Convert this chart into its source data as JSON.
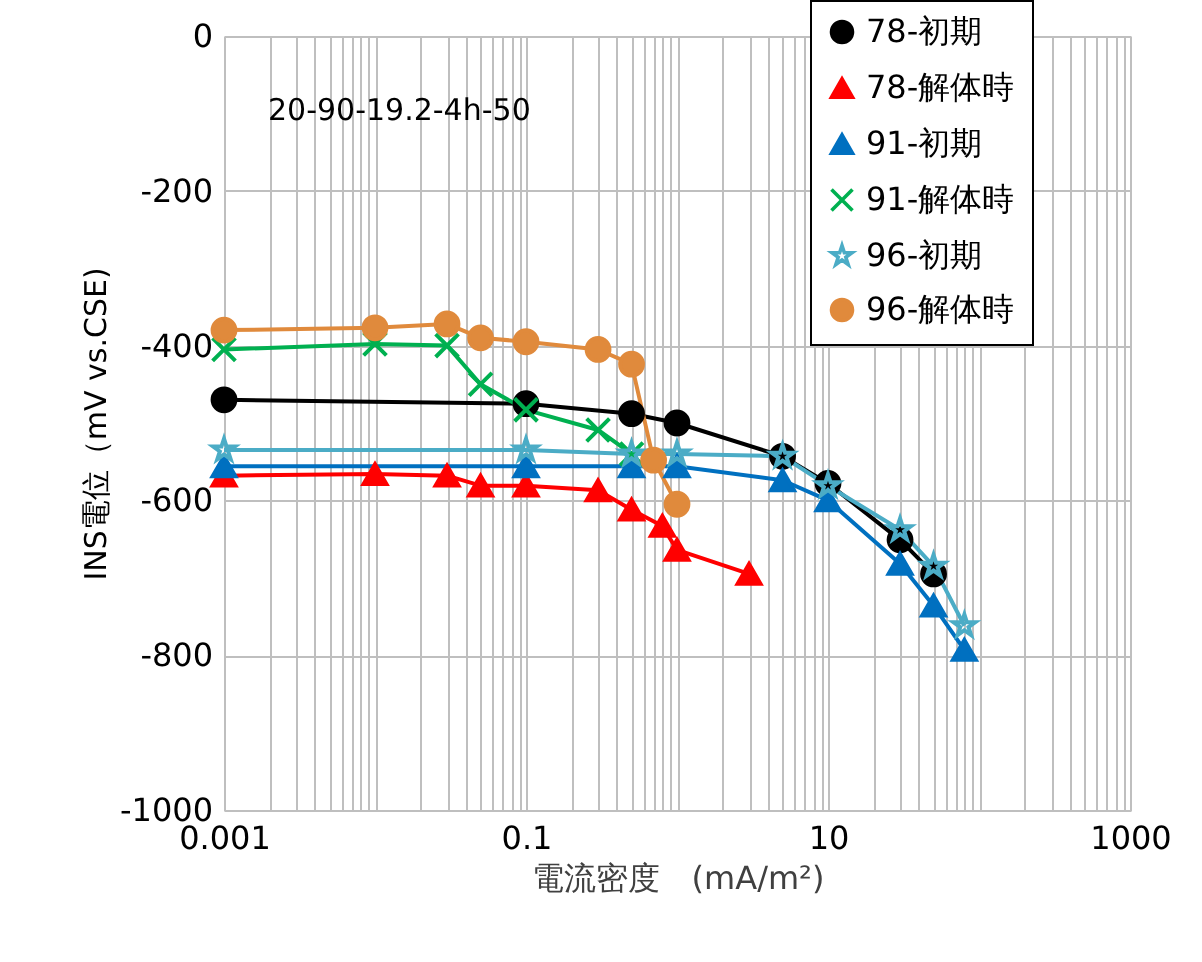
{
  "chart_data": {
    "type": "line",
    "xlabel": "電流密度　(mA/m²)",
    "ylabel": "INS電位（mV vs.CSE)",
    "annotations": [
      "20-90-19.2-4h-50"
    ],
    "log": "x",
    "grid": true,
    "legend": "top right",
    "line_style": "solid",
    "xlim": [
      0.001,
      1000
    ],
    "xticks": [
      0.001,
      {
        "value": 0.002,
        "label": null
      },
      {
        "value": 0.003,
        "label": null
      },
      {
        "value": 0.004,
        "label": null
      },
      {
        "value": 0.005,
        "label": null
      },
      {
        "value": 0.006,
        "label": null
      },
      {
        "value": 0.007,
        "label": null
      },
      {
        "value": 0.008,
        "label": null
      },
      {
        "value": 0.009,
        "label": null
      },
      {
        "value": 0.01,
        "label": null
      },
      {
        "value": 0.02,
        "label": null
      },
      {
        "value": 0.03,
        "label": null
      },
      {
        "value": 0.04,
        "label": null
      },
      {
        "value": 0.05,
        "label": null
      },
      {
        "value": 0.06,
        "label": null
      },
      {
        "value": 0.07,
        "label": null
      },
      {
        "value": 0.08,
        "label": null
      },
      {
        "value": 0.09,
        "label": null
      },
      0.1,
      {
        "value": 0.2,
        "label": null
      },
      {
        "value": 0.3,
        "label": null
      },
      {
        "value": 0.4,
        "label": null
      },
      {
        "value": 0.5,
        "label": null
      },
      {
        "value": 0.6,
        "label": null
      },
      {
        "value": 0.7,
        "label": null
      },
      {
        "value": 0.8,
        "label": null
      },
      {
        "value": 0.9,
        "label": null
      },
      {
        "value": 1,
        "label": null
      },
      {
        "value": 2,
        "label": null
      },
      {
        "value": 3,
        "label": null
      },
      {
        "value": 4,
        "label": null
      },
      {
        "value": 5,
        "label": null
      },
      {
        "value": 6,
        "label": null
      },
      {
        "value": 7,
        "label": null
      },
      {
        "value": 8,
        "label": null
      },
      {
        "value": 9,
        "label": null
      },
      10,
      {
        "value": 20,
        "label": null
      },
      {
        "value": 30,
        "label": null
      },
      {
        "value": 40,
        "label": null
      },
      {
        "value": 50,
        "label": null
      },
      {
        "value": 60,
        "label": null
      },
      {
        "value": 70,
        "label": null
      },
      {
        "value": 80,
        "label": null
      },
      {
        "value": 90,
        "label": null
      },
      {
        "value": 100,
        "label": null
      },
      {
        "value": 200,
        "label": null
      },
      {
        "value": 300,
        "label": null
      },
      {
        "value": 400,
        "label": null
      },
      {
        "value": 500,
        "label": null
      },
      {
        "value": 600,
        "label": null
      },
      {
        "value": 700,
        "label": null
      },
      {
        "value": 800,
        "label": null
      },
      {
        "value": 900,
        "label": null
      },
      1000
    ],
    "ylim": [
      -1000,
      0
    ],
    "yticks": [
      -1000,
      -800,
      -600,
      -400,
      -200,
      0
    ],
    "series": [
      {
        "name": "78-初期",
        "color": "#000000",
        "marker": "circle",
        "x": [
          0.001,
          0.1,
          0.5,
          1,
          5,
          10,
          30,
          50
        ],
        "values": [
          -470,
          -475,
          -488,
          -500,
          -543,
          -578,
          -651,
          -695
        ]
      },
      {
        "name": "78-解体時",
        "color": "#ff0000",
        "marker": "triangle",
        "x": [
          0.001,
          0.01,
          0.03,
          0.05,
          0.1,
          0.3,
          0.5,
          0.8,
          1,
          3
        ],
        "values": [
          -568,
          -566,
          -568,
          -581,
          -581,
          -587,
          -612,
          -633,
          -664,
          -695
        ]
      },
      {
        "name": "91-初期",
        "color": "#0070c0",
        "marker": "triangle",
        "x": [
          0.001,
          0.1,
          0.5,
          1,
          5,
          10,
          30,
          50,
          80
        ],
        "values": [
          -556,
          -556,
          -556,
          -556,
          -574,
          -600,
          -682,
          -736,
          -793
        ]
      },
      {
        "name": "91-解体時",
        "color": "#00b050",
        "marker": "cross",
        "x": [
          0.001,
          0.01,
          0.03,
          0.05,
          0.1,
          0.3,
          0.5
        ],
        "values": [
          -405,
          -398,
          -400,
          -450,
          -483,
          -509,
          -540
        ]
      },
      {
        "name": "96-初期",
        "color": "#4bacc6",
        "marker": "star",
        "x": [
          0.001,
          0.1,
          0.5,
          1,
          5,
          10,
          30,
          50,
          80
        ],
        "values": [
          -535,
          -535,
          -540,
          -540,
          -543,
          -581,
          -638,
          -685,
          -762
        ]
      },
      {
        "name": "96-解体時",
        "color": "#e08a3c",
        "marker": "circle",
        "x": [
          0.001,
          0.01,
          0.03,
          0.05,
          0.1,
          0.3,
          0.5,
          0.7,
          1
        ],
        "values": [
          -380,
          -377,
          -372,
          -390,
          -395,
          -405,
          -424,
          -548,
          -605
        ]
      }
    ]
  }
}
